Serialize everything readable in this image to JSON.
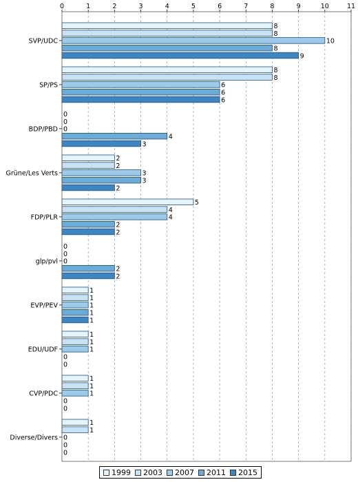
{
  "chart_data": {
    "type": "bar",
    "orientation": "horizontal",
    "categories": [
      "SVP/UDC",
      "SP/PS",
      "BDP/PBD",
      "Grüne/Les Verts",
      "FDP/PLR",
      "glp/pvl",
      "EVP/PEV",
      "EDU/UDF",
      "CVP/PDC",
      "Diverse/Divers"
    ],
    "series": [
      {
        "name": "1999",
        "color": "#e8f4fc",
        "values": [
          8,
          8,
          0,
          2,
          5,
          0,
          1,
          1,
          1,
          1
        ]
      },
      {
        "name": "2003",
        "color": "#c6e2f4",
        "values": [
          8,
          8,
          0,
          2,
          4,
          0,
          1,
          1,
          1,
          1
        ]
      },
      {
        "name": "2007",
        "color": "#9ccae8",
        "values": [
          10,
          6,
          0,
          3,
          4,
          0,
          1,
          1,
          1,
          0
        ]
      },
      {
        "name": "2011",
        "color": "#6eaad6",
        "values": [
          8,
          6,
          4,
          3,
          2,
          2,
          1,
          0,
          0,
          0
        ]
      },
      {
        "name": "2015",
        "color": "#3f86c0",
        "values": [
          9,
          6,
          3,
          2,
          2,
          2,
          1,
          0,
          0,
          0
        ]
      }
    ],
    "xaxis": {
      "ticks": [
        "0",
        "1",
        "2",
        "3",
        "4",
        "5",
        "6",
        "7",
        "8",
        "9",
        "10",
        "11"
      ],
      "range": [
        0,
        11
      ],
      "position": "top"
    },
    "grid": true,
    "legend": "bottom"
  }
}
